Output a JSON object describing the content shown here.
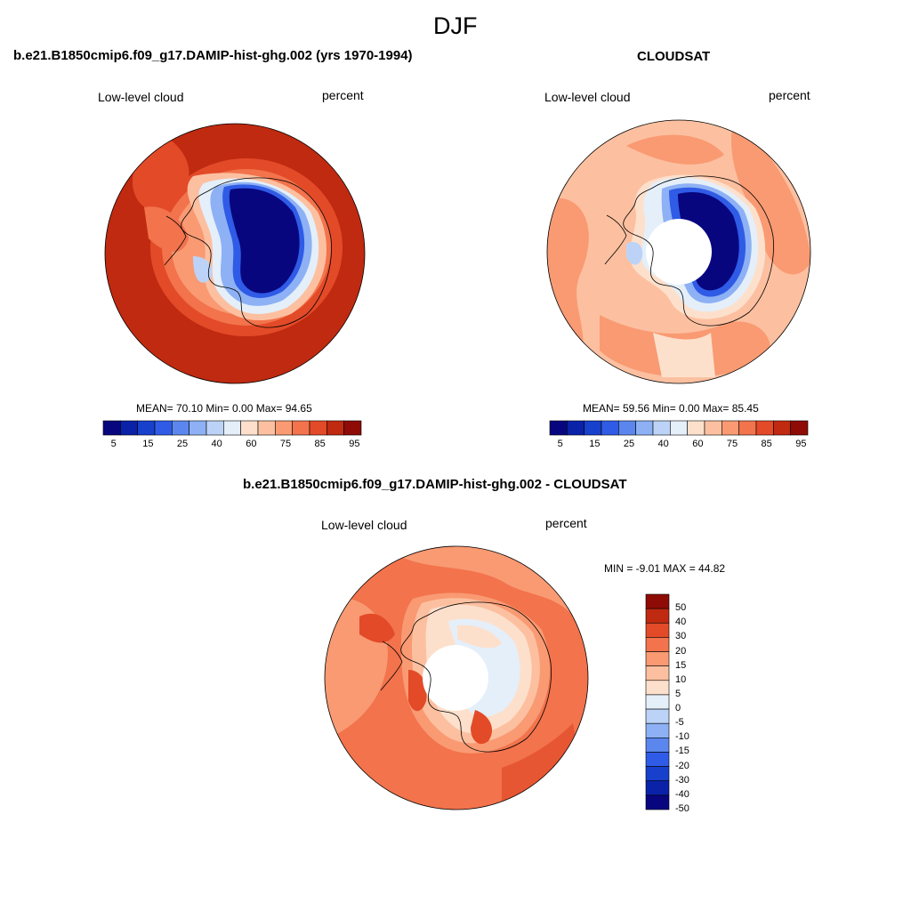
{
  "figure": {
    "season": "DJF"
  },
  "panels": [
    {
      "title": "b.e21.B1850cmip6.f09_g17.DAMIP-hist-ghg.002 (yrs 1970-1994)",
      "variable": "Low-level cloud",
      "units": "percent",
      "stats": "MEAN=  70.10  Min=   0.00  Max=  94.65",
      "colorbar_ticks": [
        "5",
        "15",
        "25",
        "40",
        "60",
        "75",
        "85",
        "95"
      ]
    },
    {
      "title": "CLOUDSAT",
      "variable": "Low-level cloud",
      "units": "percent",
      "stats": "MEAN=  59.56  Min=   0.00  Max=  85.45",
      "colorbar_ticks": [
        "5",
        "15",
        "25",
        "40",
        "60",
        "75",
        "85",
        "95"
      ]
    },
    {
      "title": "b.e21.B1850cmip6.f09_g17.DAMIP-hist-ghg.002 - CLOUDSAT",
      "variable": "Low-level cloud",
      "units": "percent",
      "stats": "MIN =  -9.01 MAX =  44.82",
      "colorbar_ticks": [
        "50",
        "40",
        "30",
        "20",
        "15",
        "10",
        "5",
        "0",
        "-5",
        "-10",
        "-15",
        "-20",
        "-30",
        "-40",
        "-50"
      ]
    }
  ],
  "colors": {
    "abs_palette": [
      "#08067f",
      "#0a22a8",
      "#1740cc",
      "#2f5be6",
      "#5b86ee",
      "#8db1f4",
      "#bcd3f7",
      "#e4effa",
      "#fde0cc",
      "#fcc0a0",
      "#f99a73",
      "#f2734c",
      "#e34a28",
      "#c02a10",
      "#8e0b06"
    ],
    "diff_palette": [
      "#8e0b06",
      "#c02a10",
      "#e34a28",
      "#f2734c",
      "#f99a73",
      "#fcc0a0",
      "#fde0cc",
      "#e4effa",
      "#bcd3f7",
      "#8db1f4",
      "#5b86ee",
      "#2f5be6",
      "#1740cc",
      "#0a22a8",
      "#08067f"
    ]
  }
}
